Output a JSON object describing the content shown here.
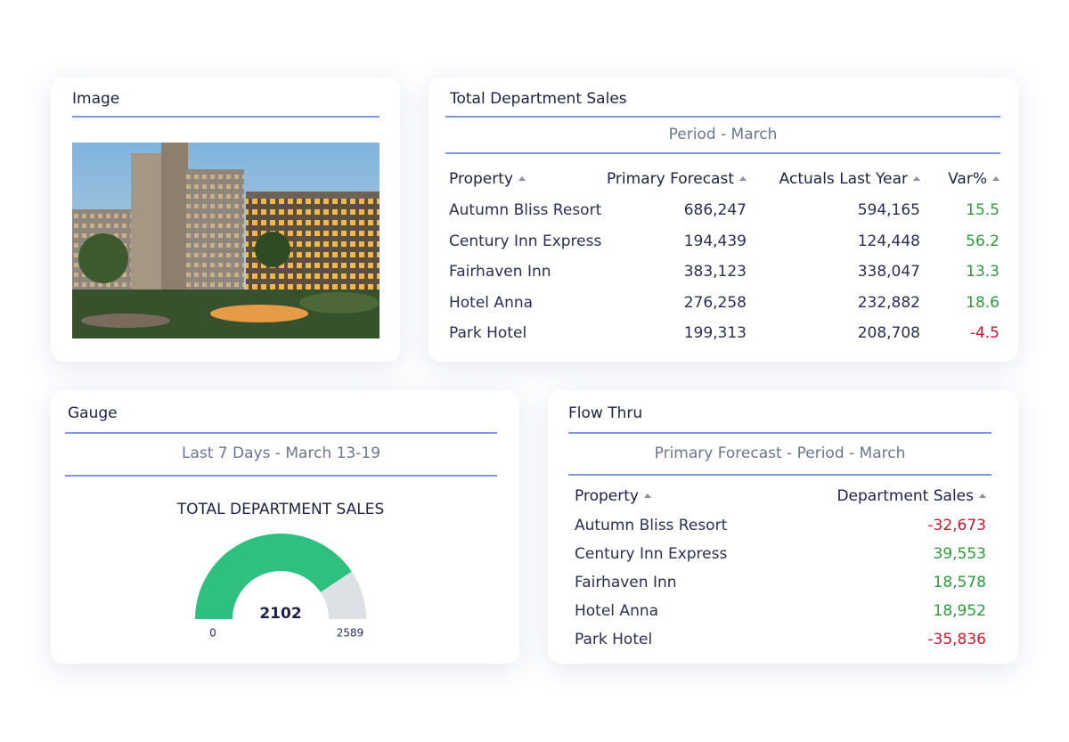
{
  "image_card": {
    "title": "Image"
  },
  "sales": {
    "title": "Total Department Sales",
    "subtitle": "Period - March",
    "columns": [
      "Property",
      "Primary Forecast",
      "Actuals Last Year",
      "Var%"
    ],
    "rows": [
      [
        "Autumn Bliss Resort",
        "686,247",
        "594,165",
        "15.5"
      ],
      [
        "Century Inn Express",
        "194,439",
        "124,448",
        "56.2"
      ],
      [
        "Fairhaven Inn",
        "383,123",
        "338,047",
        "13.3"
      ],
      [
        "Hotel Anna",
        "276,258",
        "232,882",
        "18.6"
      ],
      [
        "Park Hotel",
        "199,313",
        "208,708",
        "-4.5"
      ]
    ]
  },
  "gauge": {
    "title": "Gauge",
    "subtitle": "Last 7 Days - March 13-19",
    "label": "TOTAL DEPARTMENT SALES",
    "value": 2102,
    "min": 0,
    "max": 2589
  },
  "flow": {
    "title": "Flow Thru",
    "subtitle": "Primary Forecast - Period - March",
    "columns": [
      "Property",
      "Department Sales"
    ],
    "rows": [
      [
        "Autumn Bliss Resort",
        "-32,673"
      ],
      [
        "Century Inn Express",
        "39,553"
      ],
      [
        "Fairhaven Inn",
        "18,578"
      ],
      [
        "Hotel Anna",
        "18,952"
      ],
      [
        "Park Hotel",
        "-35,836"
      ]
    ]
  }
}
